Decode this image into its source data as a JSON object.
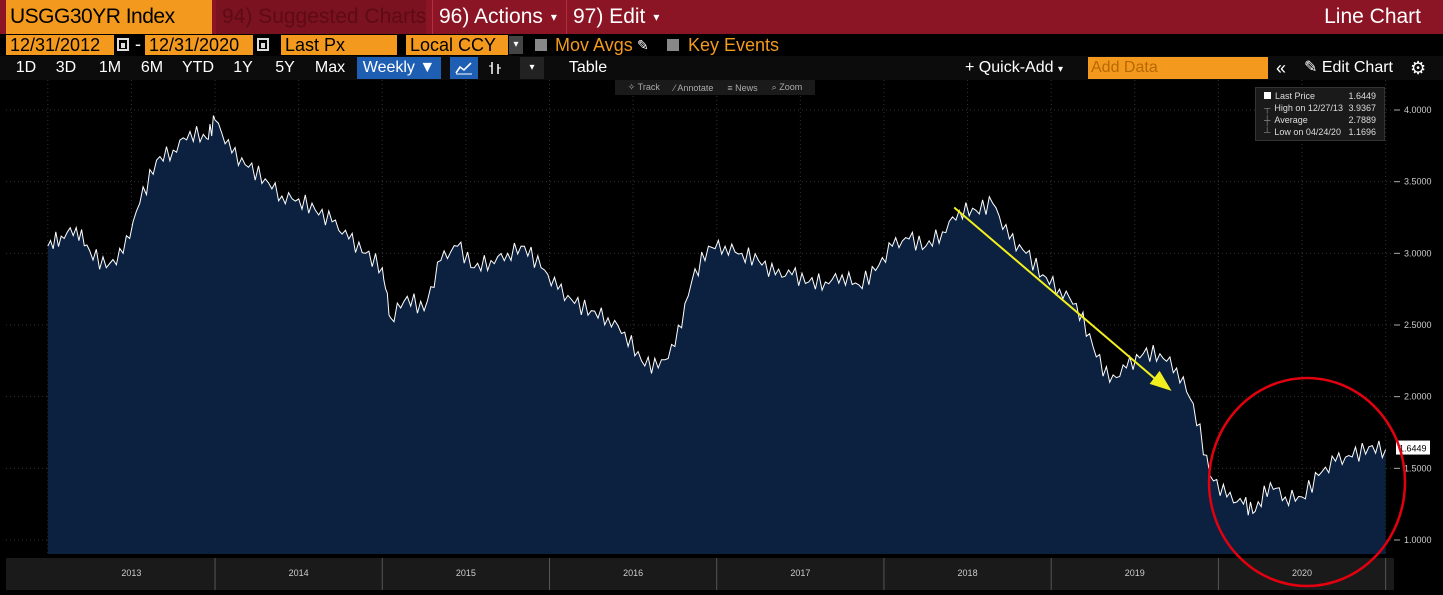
{
  "title_bar": {
    "ticker": "USGG30YR Index",
    "suggested": "94) Suggested Charts",
    "actions": "96) Actions",
    "edit": "97) Edit",
    "chart_name": "Line Chart"
  },
  "options": {
    "start_date": "12/31/2012",
    "end_date": "12/31/2020",
    "field": "Last Px",
    "currency": "Local CCY",
    "mov_avgs": "Mov Avgs",
    "key_events": "Key Events"
  },
  "toolbar": {
    "ranges": [
      "1D",
      "3D",
      "1M",
      "6M",
      "YTD",
      "1Y",
      "5Y",
      "Max"
    ],
    "frequency": "Weekly ▼",
    "table": "Table",
    "quick_add": "+ Quick-Add",
    "add_data_placeholder": "Add Data",
    "edit_chart": "Edit Chart"
  },
  "chart_tools": [
    "Track",
    "Annotate",
    "News",
    "Zoom"
  ],
  "legend": {
    "last_label": "Last Price",
    "last_value": "1.6449",
    "high_label": "High on 12/27/13",
    "high_value": "3.9367",
    "avg_label": "Average",
    "avg_value": "2.7889",
    "low_label": "Low on 04/24/20",
    "low_value": "1.1696"
  },
  "colors": {
    "area_fill": "#0b213f",
    "line": "#ffffff",
    "arrow": "#f2ef1e",
    "circle": "#e3000f",
    "accent": "#f39a1e",
    "title_bg": "#8b1524"
  },
  "chart_data": {
    "type": "area",
    "x_labels": [
      "2013",
      "2014",
      "2015",
      "2016",
      "2017",
      "2018",
      "2019",
      "2020"
    ],
    "y_ticks": [
      "1.0000",
      "1.5000",
      "2.0000",
      "2.5000",
      "3.0000",
      "3.5000",
      "4.0000"
    ],
    "ylim": [
      0.95,
      4.1
    ],
    "last_price_label": "1.6449",
    "series": [
      {
        "x": [
          2013.0,
          2013.08,
          2013.17,
          2013.25,
          2013.35,
          2013.45,
          2013.55,
          2013.65,
          2013.75,
          2013.85,
          2013.95,
          2014.0,
          2014.1,
          2014.2,
          2014.3,
          2014.4,
          2014.5,
          2014.6,
          2014.7,
          2014.8,
          2014.9,
          2015.0,
          2015.05,
          2015.15,
          2015.25,
          2015.35,
          2015.45,
          2015.55,
          2015.65,
          2015.75,
          2015.85,
          2015.95,
          2016.05,
          2016.15,
          2016.25,
          2016.35,
          2016.45,
          2016.55,
          2016.65,
          2016.75,
          2016.85,
          2016.95,
          2017.05,
          2017.15,
          2017.25,
          2017.35,
          2017.45,
          2017.55,
          2017.65,
          2017.75,
          2017.85,
          2017.95,
          2018.05,
          2018.15,
          2018.25,
          2018.35,
          2018.45,
          2018.55,
          2018.65,
          2018.75,
          2018.85,
          2018.95,
          2019.05,
          2019.15,
          2019.25,
          2019.35,
          2019.45,
          2019.55,
          2019.65,
          2019.75,
          2019.85,
          2019.95,
          2020.05,
          2020.15,
          2020.22,
          2020.31,
          2020.4,
          2020.5,
          2020.6,
          2020.7,
          2020.8,
          2020.9,
          2021.0
        ],
        "values": [
          3.05,
          3.12,
          3.18,
          3.02,
          2.9,
          3.0,
          3.35,
          3.65,
          3.72,
          3.85,
          3.8,
          3.93,
          3.7,
          3.6,
          3.52,
          3.4,
          3.38,
          3.3,
          3.22,
          3.1,
          3.0,
          2.9,
          2.55,
          2.7,
          2.6,
          2.95,
          3.05,
          2.9,
          2.95,
          3.0,
          3.05,
          2.9,
          2.75,
          2.65,
          2.6,
          2.55,
          2.45,
          2.25,
          2.2,
          2.35,
          2.8,
          3.05,
          3.05,
          3.0,
          2.95,
          2.85,
          2.85,
          2.8,
          2.8,
          2.85,
          2.78,
          2.88,
          3.05,
          3.1,
          3.05,
          3.15,
          3.3,
          3.3,
          3.35,
          3.1,
          3.0,
          2.85,
          2.75,
          2.65,
          2.35,
          2.1,
          2.2,
          2.3,
          2.3,
          2.2,
          1.95,
          1.45,
          1.3,
          1.25,
          1.2,
          1.4,
          1.3,
          1.3,
          1.45,
          1.55,
          1.58,
          1.65,
          1.63
        ]
      }
    ]
  }
}
